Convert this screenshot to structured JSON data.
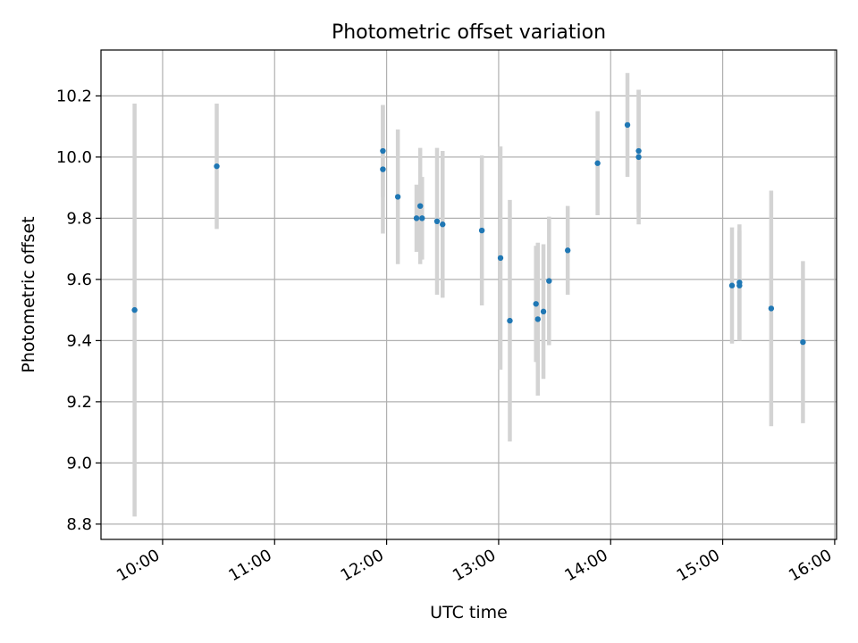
{
  "chart_data": {
    "type": "scatter",
    "title": "Photometric offset variation",
    "xlabel": "UTC time",
    "ylabel": "Photometric offset",
    "xlim": [
      "09:27",
      "16:01"
    ],
    "ylim": [
      8.75,
      10.35
    ],
    "x_ticks": [
      "10:00",
      "11:00",
      "12:00",
      "13:00",
      "14:00",
      "15:00",
      "16:00"
    ],
    "y_ticks": [
      "8.8",
      "9.0",
      "9.2",
      "9.4",
      "9.6",
      "9.8",
      "10.0",
      "10.2"
    ],
    "grid": true,
    "colors": {
      "marker": "#1f77b4",
      "errorbar": "#d3d3d3",
      "grid": "#b0b0b0"
    },
    "series": [
      {
        "points": [
          {
            "x": "09:45",
            "y": 9.5,
            "err": 0.675
          },
          {
            "x": "10:29",
            "y": 9.97,
            "err": 0.205
          },
          {
            "x": "11:58",
            "y": 10.02,
            "err": 0.15
          },
          {
            "x": "11:58",
            "y": 9.96,
            "err": 0.21
          },
          {
            "x": "12:06",
            "y": 9.87,
            "err": 0.22
          },
          {
            "x": "12:16",
            "y": 9.8,
            "err": 0.11
          },
          {
            "x": "12:18",
            "y": 9.84,
            "err": 0.19
          },
          {
            "x": "12:19",
            "y": 9.8,
            "err": 0.135
          },
          {
            "x": "12:27",
            "y": 9.79,
            "err": 0.24
          },
          {
            "x": "12:30",
            "y": 9.78,
            "err": 0.24
          },
          {
            "x": "12:51",
            "y": 9.76,
            "err": 0.245
          },
          {
            "x": "13:01",
            "y": 9.67,
            "err": 0.365
          },
          {
            "x": "13:06",
            "y": 9.465,
            "err": 0.395
          },
          {
            "x": "13:20",
            "y": 9.52,
            "err": 0.19
          },
          {
            "x": "13:21",
            "y": 9.47,
            "err": 0.25
          },
          {
            "x": "13:24",
            "y": 9.495,
            "err": 0.22
          },
          {
            "x": "13:27",
            "y": 9.595,
            "err": 0.21
          },
          {
            "x": "13:37",
            "y": 9.695,
            "err": 0.145
          },
          {
            "x": "13:53",
            "y": 9.98,
            "err": 0.17
          },
          {
            "x": "14:09",
            "y": 10.105,
            "err": 0.17
          },
          {
            "x": "14:15",
            "y": 10.02,
            "err": 0.2
          },
          {
            "x": "14:15",
            "y": 10.0,
            "err": 0.22
          },
          {
            "x": "15:05",
            "y": 9.58,
            "err": 0.19
          },
          {
            "x": "15:09",
            "y": 9.59,
            "err": 0.19
          },
          {
            "x": "15:09",
            "y": 9.58,
            "err": 0.18
          },
          {
            "x": "15:26",
            "y": 9.505,
            "err": 0.385
          },
          {
            "x": "15:43",
            "y": 9.395,
            "err": 0.265
          }
        ]
      }
    ]
  }
}
